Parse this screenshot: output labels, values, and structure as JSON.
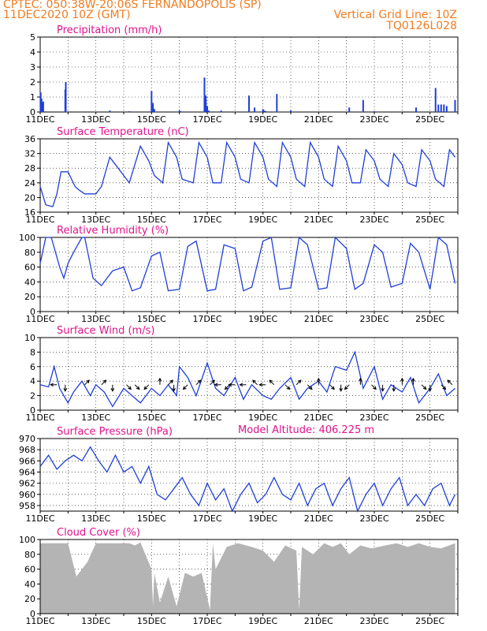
{
  "header": {
    "line1": "CPTEC:   050:38W-20:06S   FERNANDOPOLIS (SP)",
    "line2": "11DEC2020 10Z (GMT)",
    "grid_note": "Vertical Grid Line: 10Z",
    "code": "TQ0126L028",
    "model_altitude": "Model Altitude: 406.225 m",
    "color": "#f07c22",
    "title_color": "#e0148c",
    "series_color": "#1f3fd8",
    "cloud_color": "#b4b4b4"
  },
  "x_ticks": [
    "11DEC",
    "13DEC",
    "15DEC",
    "17DEC",
    "19DEC",
    "21DEC",
    "23DEC",
    "25DEC"
  ],
  "chart_data": [
    {
      "id": "precip",
      "type": "bar",
      "title": "Precipitation (mm/h)",
      "ylim": [
        0,
        5
      ],
      "yticks": [
        0,
        1,
        2,
        3,
        4,
        5
      ],
      "x_unit": "days since 11DEC 10Z",
      "x": [
        0.02,
        0.05,
        0.08,
        0.11,
        0.9,
        0.92,
        2.5,
        3.2,
        4.0,
        4.05,
        4.1,
        5.0,
        5.05,
        5.9,
        5.95,
        6.0,
        6.05,
        6.5,
        7.5,
        7.7,
        8.0,
        8.05,
        8.1,
        8.5,
        9.0,
        11.1,
        11.6,
        12.0,
        13.5,
        14.2,
        14.3,
        14.4,
        14.5,
        14.6,
        14.9
      ],
      "values": [
        1.3,
        0.9,
        0.6,
        0.7,
        1.5,
        2.0,
        0.1,
        0.05,
        1.4,
        0.6,
        0.2,
        0.1,
        0.05,
        2.3,
        1.1,
        0.4,
        0.1,
        0.1,
        1.1,
        0.3,
        0.2,
        0.1,
        0.05,
        1.2,
        0.1,
        0.3,
        0.8,
        0.05,
        0.3,
        1.6,
        0.5,
        0.5,
        0.5,
        0.4,
        0.8
      ]
    },
    {
      "id": "temp",
      "type": "line",
      "title": "Surface Temperature (nC)",
      "ylim": [
        16,
        36
      ],
      "yticks": [
        16,
        20,
        24,
        28,
        32,
        36
      ],
      "x": [
        0,
        0.2,
        0.45,
        0.6,
        0.75,
        1.0,
        1.25,
        1.4,
        1.6,
        2.0,
        2.2,
        2.5,
        2.8,
        3.0,
        3.2,
        3.6,
        3.9,
        4.1,
        4.4,
        4.6,
        4.9,
        5.1,
        5.5,
        5.7,
        6.0,
        6.2,
        6.5,
        6.7,
        7.0,
        7.2,
        7.5,
        7.7,
        8.0,
        8.2,
        8.5,
        8.7,
        9.0,
        9.2,
        9.5,
        9.7,
        10.0,
        10.2,
        10.5,
        10.7,
        11.0,
        11.2,
        11.5,
        11.7,
        12.0,
        12.2,
        12.5,
        12.7,
        13.0,
        13.2,
        13.5,
        13.7,
        14.0,
        14.2,
        14.5,
        14.7,
        14.9
      ],
      "values": [
        23,
        18,
        17.5,
        21,
        27,
        27,
        23,
        22,
        21,
        21,
        23,
        31,
        28,
        26,
        24,
        34,
        30,
        26,
        24,
        35,
        31,
        25,
        24,
        35,
        31,
        24,
        24,
        35,
        31,
        25,
        24,
        35,
        31,
        25,
        23,
        35,
        31,
        25,
        23,
        35,
        31,
        25,
        23,
        34,
        30,
        24,
        24,
        33,
        30,
        25,
        23,
        32,
        29,
        24,
        23,
        33,
        30,
        25,
        23,
        33,
        31
      ]
    },
    {
      "id": "rh",
      "type": "line",
      "title": "Relative Humidity (%)",
      "ylim": [
        0,
        100
      ],
      "yticks": [
        0,
        20,
        40,
        60,
        80,
        100
      ],
      "x": [
        0,
        0.2,
        0.4,
        0.7,
        0.85,
        1.0,
        1.2,
        1.5,
        1.6,
        1.9,
        2.2,
        2.6,
        3.0,
        3.3,
        3.6,
        4.0,
        4.3,
        4.6,
        5.0,
        5.3,
        5.6,
        6.0,
        6.3,
        6.6,
        7.0,
        7.3,
        7.6,
        8.0,
        8.3,
        8.6,
        9.0,
        9.3,
        9.6,
        10.0,
        10.3,
        10.6,
        11.0,
        11.3,
        11.6,
        12.0,
        12.3,
        12.6,
        13.0,
        13.3,
        13.6,
        14.0,
        14.3,
        14.6,
        14.9
      ],
      "values": [
        65,
        100,
        100,
        60,
        45,
        65,
        80,
        100,
        100,
        45,
        35,
        55,
        60,
        28,
        32,
        75,
        80,
        28,
        30,
        88,
        95,
        28,
        30,
        90,
        85,
        28,
        33,
        95,
        100,
        30,
        32,
        100,
        90,
        30,
        32,
        100,
        85,
        30,
        38,
        90,
        80,
        33,
        38,
        92,
        80,
        30,
        100,
        90,
        38
      ]
    },
    {
      "id": "wind",
      "type": "line",
      "title": "Surface Wind (m/s)",
      "ylim": [
        0,
        10
      ],
      "yticks": [
        0,
        2,
        4,
        6,
        8,
        10
      ],
      "x": [
        0,
        0.3,
        0.5,
        0.7,
        1.0,
        1.2,
        1.5,
        1.8,
        2.0,
        2.3,
        2.6,
        3.0,
        3.3,
        3.6,
        4.0,
        4.3,
        4.6,
        4.9,
        5.0,
        5.3,
        5.6,
        6.0,
        6.3,
        6.6,
        7.0,
        7.3,
        7.6,
        8.0,
        8.3,
        8.6,
        9.0,
        9.3,
        9.6,
        10.0,
        10.3,
        10.6,
        11.0,
        11.3,
        11.6,
        12.0,
        12.3,
        12.6,
        13.0,
        13.3,
        13.6,
        14.0,
        14.3,
        14.6,
        14.9
      ],
      "values": [
        3.5,
        3.2,
        6.0,
        3.0,
        1.0,
        2.5,
        4.0,
        2.0,
        3.5,
        2.5,
        0.5,
        3.0,
        2.0,
        1.0,
        3.0,
        2.0,
        3.5,
        2.0,
        6.0,
        4.5,
        2.0,
        6.5,
        3.0,
        2.0,
        4.5,
        1.5,
        3.5,
        2.0,
        1.5,
        3.0,
        4.5,
        1.5,
        3.0,
        4.0,
        2.5,
        6.0,
        5.5,
        8.0,
        3.0,
        6.0,
        1.5,
        3.5,
        2.5,
        4.5,
        1.0,
        3.0,
        5.0,
        2.0,
        3.0
      ],
      "arrows_x": [
        0.6,
        0.9,
        1.6,
        2.2,
        2.6,
        3.1,
        3.4,
        3.9,
        4.3,
        4.6,
        4.8,
        5.3,
        5.6,
        6.1,
        6.5,
        6.8,
        7.0,
        7.4,
        7.8,
        8.1,
        8.4,
        8.8,
        9.2,
        9.6,
        10.0,
        10.4,
        10.8,
        11.1,
        11.5,
        11.9,
        12.3,
        12.7,
        13.0,
        13.4,
        13.7,
        14.0,
        14.4,
        14.8
      ],
      "arrows_dir": [
        "W",
        "S",
        "NE",
        "NE",
        "S",
        "SE",
        "SE",
        "SW",
        "N",
        "NE",
        "S",
        "SW",
        "NE",
        "NE",
        "W",
        "SW",
        "W",
        "W",
        "NW",
        "W",
        "NW",
        "SE",
        "NE",
        "SE",
        "N",
        "SE",
        "S",
        "SW",
        "N",
        "SE",
        "S",
        "S",
        "N",
        "N",
        "SE",
        "S",
        "SE",
        "NW"
      ]
    },
    {
      "id": "pressure",
      "type": "line",
      "title": "Surface Pressure (hPa)",
      "ylim": [
        957,
        970
      ],
      "yticks": [
        958,
        960,
        962,
        964,
        966,
        968,
        970
      ],
      "x": [
        0,
        0.3,
        0.6,
        0.9,
        1.2,
        1.5,
        1.8,
        2.1,
        2.4,
        2.7,
        3.0,
        3.3,
        3.6,
        3.9,
        4.2,
        4.5,
        4.8,
        5.1,
        5.4,
        5.7,
        6.0,
        6.3,
        6.6,
        6.9,
        7.2,
        7.5,
        7.8,
        8.1,
        8.4,
        8.7,
        9.0,
        9.3,
        9.6,
        9.9,
        10.2,
        10.5,
        10.8,
        11.1,
        11.4,
        11.7,
        12.0,
        12.3,
        12.6,
        12.9,
        13.2,
        13.5,
        13.8,
        14.1,
        14.4,
        14.7,
        14.9
      ],
      "values": [
        965,
        967,
        964.5,
        966,
        967,
        966,
        968.5,
        966,
        964,
        967,
        964,
        965,
        962,
        965,
        960,
        959,
        961,
        963,
        960,
        958,
        962,
        959,
        961,
        957,
        960,
        962,
        958.5,
        960,
        963,
        960,
        959,
        962,
        958,
        961,
        962,
        958,
        961,
        963,
        957,
        960,
        962,
        958,
        961,
        963,
        958,
        960,
        958,
        961,
        962,
        958,
        960
      ]
    },
    {
      "id": "cloud",
      "type": "area",
      "title": "Cloud Cover (%)",
      "ylim": [
        0,
        100
      ],
      "yticks": [
        0,
        20,
        40,
        60,
        80,
        100
      ],
      "x": [
        0,
        1.0,
        1.3,
        1.7,
        2.0,
        2.4,
        2.8,
        3.2,
        3.4,
        3.6,
        4.0,
        4.05,
        4.1,
        4.3,
        4.6,
        4.9,
        5.2,
        5.5,
        5.8,
        6.1,
        6.2,
        6.3,
        6.7,
        7.1,
        7.6,
        8.0,
        8.4,
        8.8,
        9.2,
        9.3,
        9.4,
        9.8,
        10.2,
        10.5,
        10.8,
        11.1,
        11.5,
        11.9,
        12.4,
        12.8,
        13.2,
        13.6,
        14.0,
        14.4,
        14.9
      ],
      "values": [
        95,
        95,
        50,
        70,
        95,
        95,
        95,
        95,
        92,
        96,
        60,
        10,
        55,
        15,
        50,
        10,
        55,
        50,
        55,
        5,
        95,
        60,
        90,
        95,
        90,
        85,
        70,
        92,
        85,
        5,
        90,
        80,
        95,
        90,
        95,
        80,
        92,
        88,
        92,
        95,
        90,
        95,
        90,
        88,
        95
      ]
    }
  ]
}
